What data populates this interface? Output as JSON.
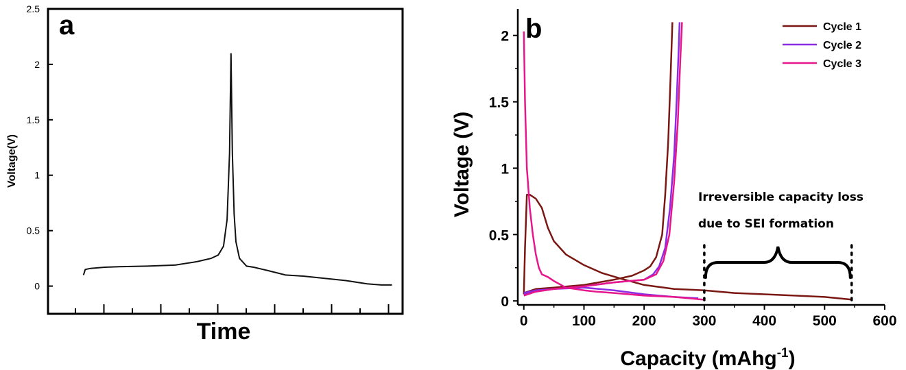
{
  "chart_data": [
    {
      "type": "line",
      "panel_label": "a",
      "xlabel": "Time",
      "ylabel": "Voltage(V)",
      "ylim": [
        -0.25,
        2.5
      ],
      "yticks": [
        "0",
        "0.5",
        "1",
        "1.5",
        "2",
        "2.5"
      ],
      "yticks_values": [
        0,
        0.5,
        1,
        1.5,
        2,
        2.5
      ],
      "xlim": [
        0,
        100
      ],
      "x": [
        10,
        10.5,
        12,
        16,
        20,
        28,
        36,
        42,
        46,
        48,
        49.5,
        50.5,
        51.2,
        51.6,
        52,
        52.5,
        53,
        54,
        56,
        58,
        62,
        67,
        72,
        78,
        84,
        90,
        94,
        97
      ],
      "y": [
        0.1,
        0.15,
        0.16,
        0.17,
        0.175,
        0.18,
        0.19,
        0.22,
        0.25,
        0.28,
        0.36,
        0.6,
        1.2,
        2.1,
        1.2,
        0.65,
        0.4,
        0.25,
        0.18,
        0.17,
        0.14,
        0.1,
        0.09,
        0.07,
        0.05,
        0.02,
        0.01,
        0.01
      ],
      "grid": false
    },
    {
      "type": "line",
      "panel_label": "b",
      "xlabel": "Capacity (mAhg",
      "xlabel_superscript": "-1",
      "xlabel_suffix": ")",
      "ylabel": "Voltage (V)",
      "xlim": [
        -10,
        600
      ],
      "ylim": [
        -0.03,
        2.2
      ],
      "xticks": [
        "0",
        "100",
        "200",
        "300",
        "400",
        "500",
        "600"
      ],
      "xticks_values": [
        0,
        100,
        200,
        300,
        400,
        500,
        600
      ],
      "yticks": [
        "0",
        "0.5",
        "1",
        "1.5",
        "2"
      ],
      "yticks_values": [
        0,
        0.5,
        1,
        1.5,
        2
      ],
      "legend": "top-right",
      "grid": false,
      "series": [
        {
          "name": "Cycle 1",
          "color": "#7b1712",
          "x": [
            0,
            2,
            5,
            10,
            20,
            30,
            40,
            50,
            70,
            100,
            130,
            160,
            200,
            250,
            300,
            350,
            400,
            450,
            500,
            545
          ],
          "y": [
            0.05,
            0.4,
            0.8,
            0.8,
            0.77,
            0.7,
            0.55,
            0.45,
            0.35,
            0.27,
            0.21,
            0.17,
            0.12,
            0.09,
            0.08,
            0.06,
            0.05,
            0.04,
            0.03,
            0.01
          ]
        },
        {
          "name": "Cycle 1",
          "color": "#7b1712",
          "x": [
            0,
            20,
            50,
            100,
            150,
            180,
            200,
            210,
            220,
            230,
            235,
            240,
            244,
            247
          ],
          "y": [
            0.06,
            0.09,
            0.1,
            0.12,
            0.16,
            0.19,
            0.23,
            0.26,
            0.33,
            0.5,
            0.8,
            1.2,
            1.7,
            2.1
          ]
        },
        {
          "name": "Cycle 2",
          "color": "#8b2be2",
          "x": [
            0,
            20,
            50,
            100,
            150,
            200,
            250,
            290
          ],
          "y": [
            0.05,
            0.07,
            0.09,
            0.1,
            0.08,
            0.05,
            0.03,
            0.02
          ]
        },
        {
          "name": "Cycle 2",
          "color": "#8b2be2",
          "x": [
            0,
            20,
            50,
            100,
            150,
            200,
            215,
            225,
            235,
            243,
            250,
            254,
            257,
            259
          ],
          "y": [
            0.06,
            0.08,
            0.09,
            0.11,
            0.14,
            0.16,
            0.2,
            0.26,
            0.4,
            0.7,
            1.1,
            1.5,
            1.85,
            2.1
          ]
        },
        {
          "name": "Cycle 3",
          "color": "#e8168c",
          "x": [
            0,
            2,
            5,
            10,
            15,
            20,
            25,
            30,
            40,
            50,
            70,
            100,
            120,
            150,
            200,
            250,
            298
          ],
          "y": [
            2.03,
            1.5,
            1.0,
            0.7,
            0.5,
            0.35,
            0.25,
            0.2,
            0.18,
            0.15,
            0.1,
            0.08,
            0.07,
            0.06,
            0.04,
            0.03,
            0.01
          ]
        },
        {
          "name": "Cycle 3",
          "color": "#e8168c",
          "x": [
            0,
            20,
            50,
            100,
            150,
            200,
            220,
            232,
            242,
            250,
            256,
            260,
            263
          ],
          "y": [
            0.04,
            0.07,
            0.09,
            0.11,
            0.14,
            0.16,
            0.2,
            0.3,
            0.5,
            0.9,
            1.35,
            1.8,
            2.1
          ]
        }
      ],
      "annotation": {
        "lines": [
          "Irreversible capacity loss",
          "due to SEI formation"
        ],
        "range_x": [
          300,
          545
        ]
      }
    }
  ]
}
